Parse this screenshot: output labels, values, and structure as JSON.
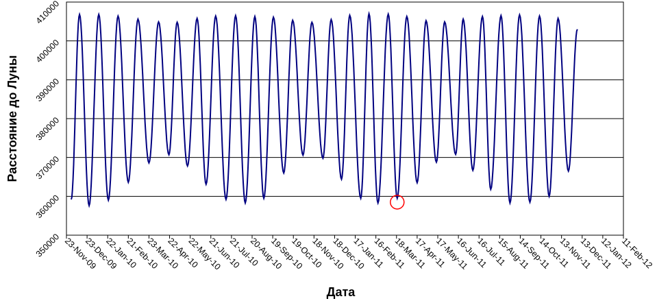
{
  "chart_data": {
    "type": "line",
    "ylabel": "Расстояние до Луны",
    "xlabel": "Дата",
    "ylim": [
      350000,
      410000
    ],
    "ytick_labels": [
      "350000",
      "360000",
      "370000",
      "380000",
      "390000",
      "400000",
      "410000"
    ],
    "xlim": [
      "2009-11-23",
      "2012-02-11"
    ],
    "xtick_labels": [
      "23-Nov-09",
      "23-Dec-09",
      "22-Jan-10",
      "21-Feb-10",
      "23-Mar-10",
      "22-Apr-10",
      "22-May-10",
      "21-Jun-10",
      "21-Jul-10",
      "20-Aug-10",
      "19-Sep-10",
      "19-Oct-10",
      "18-Nov-10",
      "18-Dec-10",
      "17-Jan-11",
      "16-Feb-11",
      "18-Mar-11",
      "17-Apr-11",
      "17-May-11",
      "16-Jun-11",
      "16-Jul-11",
      "15-Aug-11",
      "14-Sep-11",
      "14-Oct-11",
      "13-Nov-11",
      "13-Dec-11",
      "12-Jan-12",
      "11-Feb-12"
    ],
    "grid": "horizontal",
    "line_color": "#000080",
    "annotation": {
      "type": "circle",
      "color": "#ff0000",
      "date": "2011-03-19",
      "y": 358500
    },
    "series": [
      {
        "points": [
          [
            "2009-11-30",
            359200
          ],
          [
            "2009-12-12",
            406800
          ],
          [
            "2009-12-26",
            357600
          ],
          [
            "2010-01-09",
            406800
          ],
          [
            "2010-01-23",
            359000
          ],
          [
            "2010-02-06",
            406400
          ],
          [
            "2010-02-21",
            363600
          ],
          [
            "2010-03-07",
            405600
          ],
          [
            "2010-03-23",
            368600
          ],
          [
            "2010-04-06",
            404900
          ],
          [
            "2010-04-21",
            370700
          ],
          [
            "2010-05-03",
            404800
          ],
          [
            "2010-05-18",
            367800
          ],
          [
            "2010-06-01",
            405800
          ],
          [
            "2010-06-14",
            363100
          ],
          [
            "2010-06-28",
            406400
          ],
          [
            "2010-07-13",
            359200
          ],
          [
            "2010-07-27",
            406500
          ],
          [
            "2010-08-10",
            358300
          ],
          [
            "2010-08-24",
            406300
          ],
          [
            "2010-09-06",
            359500
          ],
          [
            "2010-09-20",
            406100
          ],
          [
            "2010-10-05",
            366000
          ],
          [
            "2010-10-18",
            405300
          ],
          [
            "2010-11-02",
            370600
          ],
          [
            "2010-11-15",
            404800
          ],
          [
            "2010-12-01",
            369800
          ],
          [
            "2010-12-13",
            405500
          ],
          [
            "2010-12-28",
            364400
          ],
          [
            "2011-01-09",
            406600
          ],
          [
            "2011-01-25",
            359500
          ],
          [
            "2011-02-06",
            407000
          ],
          [
            "2011-02-19",
            358300
          ],
          [
            "2011-03-06",
            406900
          ],
          [
            "2011-03-19",
            359500
          ],
          [
            "2011-04-02",
            406300
          ],
          [
            "2011-04-17",
            363500
          ],
          [
            "2011-04-30",
            405200
          ],
          [
            "2011-05-15",
            368800
          ],
          [
            "2011-05-27",
            404900
          ],
          [
            "2011-06-12",
            370800
          ],
          [
            "2011-06-23",
            405600
          ],
          [
            "2011-07-07",
            366700
          ],
          [
            "2011-07-21",
            406300
          ],
          [
            "2011-08-02",
            361800
          ],
          [
            "2011-08-17",
            406500
          ],
          [
            "2011-08-30",
            358300
          ],
          [
            "2011-09-13",
            406700
          ],
          [
            "2011-09-28",
            358500
          ],
          [
            "2011-10-12",
            406400
          ],
          [
            "2011-10-26",
            360000
          ],
          [
            "2011-11-08",
            405800
          ],
          [
            "2011-11-23",
            366500
          ],
          [
            "2011-12-06",
            403000
          ]
        ]
      }
    ]
  }
}
